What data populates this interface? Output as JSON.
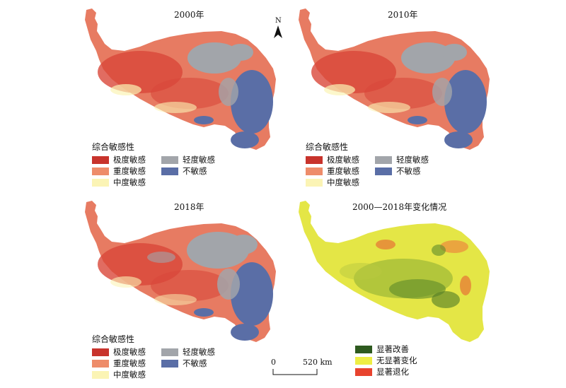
{
  "panels": [
    {
      "title": "2000年"
    },
    {
      "title": "2010年"
    },
    {
      "title": "2018年"
    },
    {
      "title": "2000—2018年变化情况"
    }
  ],
  "legend_sensitivity": {
    "title": "综合敏感性",
    "items": [
      {
        "label": "极度敏感",
        "color": "#c8332c"
      },
      {
        "label": "重度敏感",
        "color": "#ee8c6a"
      },
      {
        "label": "中度敏感",
        "color": "#fbf4b5"
      },
      {
        "label": "轻度敏感",
        "color": "#a2a5aa"
      },
      {
        "label": "不敏感",
        "color": "#5a6ea6"
      }
    ]
  },
  "legend_change": {
    "items": [
      {
        "label": "显著改善",
        "color": "#2e5a1f"
      },
      {
        "label": "无显著变化",
        "color": "#eeee44"
      },
      {
        "label": "显著退化",
        "color": "#e8432e"
      }
    ]
  },
  "north_arrow": {
    "label": "N"
  },
  "scale_bar": {
    "start": "0",
    "end": "520 km"
  }
}
